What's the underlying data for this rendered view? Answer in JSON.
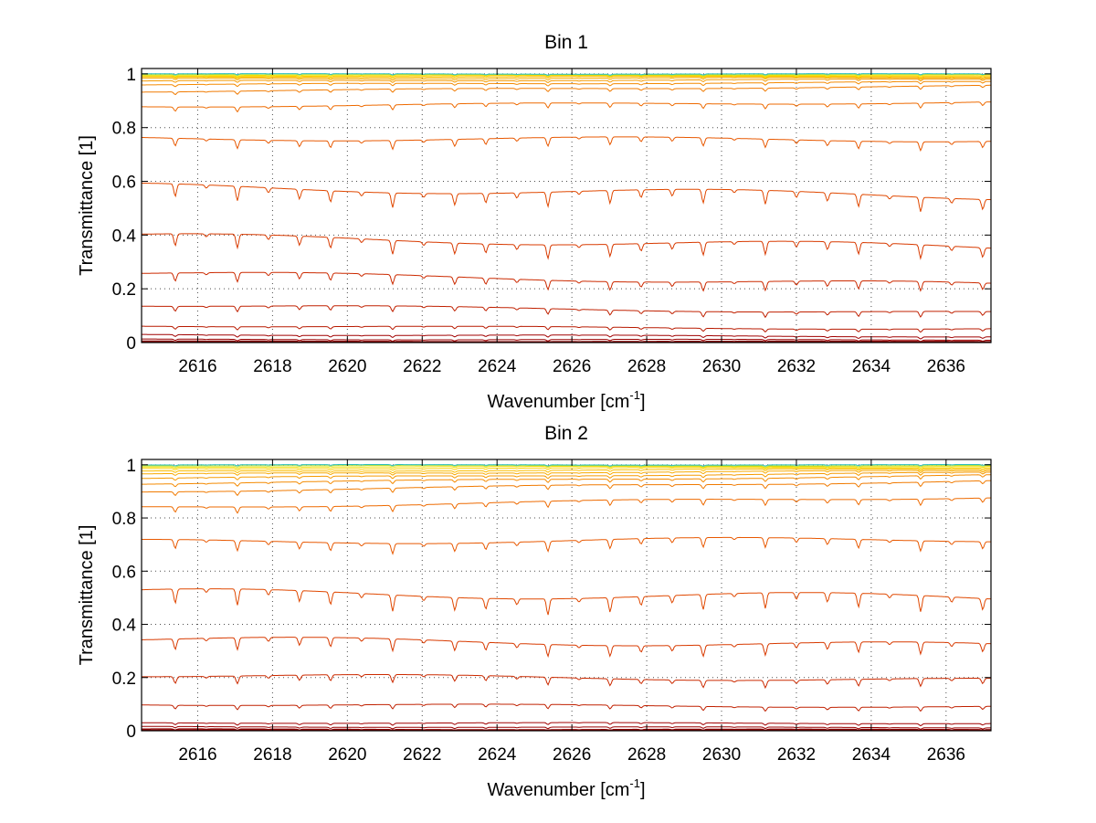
{
  "chart_data": [
    {
      "type": "line",
      "title": "Bin 1",
      "xlabel_main": "Wavenumber [cm",
      "xlabel_sup": "-1",
      "xlabel_close": "]",
      "ylabel": "Transmittance [1]",
      "xlim": [
        2614.5,
        2637.2
      ],
      "ylim": [
        0,
        1.02
      ],
      "xticks": [
        2616,
        2618,
        2620,
        2622,
        2624,
        2626,
        2628,
        2630,
        2632,
        2634,
        2636
      ],
      "yticks": [
        0,
        0.2,
        0.4,
        0.6,
        0.8,
        1
      ],
      "ytick_labels": [
        "0",
        "0.2",
        "0.4",
        "0.6",
        "0.8",
        "1"
      ],
      "grid": true,
      "series_levels": [
        {
          "start": 0.0,
          "end": 0.0,
          "color": "#8b0000"
        },
        {
          "start": 0.005,
          "end": 0.004,
          "color": "#8b0000"
        },
        {
          "start": 0.012,
          "end": 0.01,
          "color": "#990000"
        },
        {
          "start": 0.03,
          "end": 0.022,
          "color": "#a00000"
        },
        {
          "start": 0.063,
          "end": 0.05,
          "color": "#b81a00"
        },
        {
          "start": 0.14,
          "end": 0.11,
          "color": "#c02000"
        },
        {
          "start": 0.26,
          "end": 0.215,
          "color": "#cc2a00"
        },
        {
          "start": 0.395,
          "end": 0.355,
          "color": "#d83a00"
        },
        {
          "start": 0.58,
          "end": 0.545,
          "color": "#e04800"
        },
        {
          "start": 0.76,
          "end": 0.755,
          "color": "#e85800"
        },
        {
          "start": 0.88,
          "end": 0.895,
          "color": "#ee6a00"
        },
        {
          "start": 0.935,
          "end": 0.955,
          "color": "#f07a00"
        },
        {
          "start": 0.96,
          "end": 0.97,
          "color": "#f48a00"
        },
        {
          "start": 0.973,
          "end": 0.98,
          "color": "#f59a00"
        },
        {
          "start": 0.982,
          "end": 0.986,
          "color": "#f8aa00"
        },
        {
          "start": 0.988,
          "end": 0.99,
          "color": "#fbbd00"
        },
        {
          "start": 0.992,
          "end": 0.993,
          "color": "#fdd000"
        },
        {
          "start": 0.995,
          "end": 0.996,
          "color": "#f0e000"
        },
        {
          "start": 0.998,
          "end": 0.998,
          "color": "#b0e040"
        },
        {
          "start": 1.0,
          "end": 1.0,
          "color": "#30c0c0"
        }
      ]
    },
    {
      "type": "line",
      "title": "Bin 2",
      "xlabel_main": "Wavenumber [cm",
      "xlabel_sup": "-1",
      "xlabel_close": "]",
      "ylabel": "Transmittance [1]",
      "xlim": [
        2614.5,
        2637.2
      ],
      "ylim": [
        0,
        1.02
      ],
      "xticks": [
        2616,
        2618,
        2620,
        2622,
        2624,
        2626,
        2628,
        2630,
        2632,
        2634,
        2636
      ],
      "yticks": [
        0,
        0.2,
        0.4,
        0.6,
        0.8,
        1
      ],
      "ytick_labels": [
        "0",
        "0.2",
        "0.4",
        "0.6",
        "0.8",
        "1"
      ],
      "grid": true,
      "series_levels": [
        {
          "start": 0.0,
          "end": 0.0,
          "color": "#8b0000"
        },
        {
          "start": 0.006,
          "end": 0.005,
          "color": "#8b0000"
        },
        {
          "start": 0.015,
          "end": 0.012,
          "color": "#990000"
        },
        {
          "start": 0.03,
          "end": 0.028,
          "color": "#a00000"
        },
        {
          "start": 0.1,
          "end": 0.09,
          "color": "#c02000"
        },
        {
          "start": 0.21,
          "end": 0.19,
          "color": "#cc2a00"
        },
        {
          "start": 0.345,
          "end": 0.32,
          "color": "#d83a00"
        },
        {
          "start": 0.52,
          "end": 0.5,
          "color": "#e04800"
        },
        {
          "start": 0.71,
          "end": 0.72,
          "color": "#e85800"
        },
        {
          "start": 0.84,
          "end": 0.88,
          "color": "#ee6a00"
        },
        {
          "start": 0.9,
          "end": 0.94,
          "color": "#f07a00"
        },
        {
          "start": 0.93,
          "end": 0.96,
          "color": "#f48a00"
        },
        {
          "start": 0.95,
          "end": 0.97,
          "color": "#f59a00"
        },
        {
          "start": 0.965,
          "end": 0.978,
          "color": "#f8aa00"
        },
        {
          "start": 0.975,
          "end": 0.985,
          "color": "#fbbd00"
        },
        {
          "start": 0.985,
          "end": 0.99,
          "color": "#fdd000"
        },
        {
          "start": 0.992,
          "end": 0.994,
          "color": "#f0e000"
        },
        {
          "start": 0.997,
          "end": 0.997,
          "color": "#b0e040"
        },
        {
          "start": 1.0,
          "end": 1.0,
          "color": "#30c0c0"
        }
      ]
    }
  ]
}
